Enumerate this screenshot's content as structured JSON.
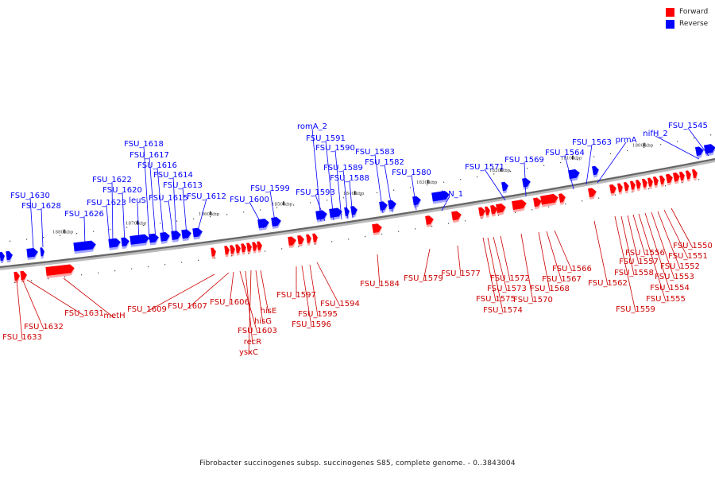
{
  "legend": {
    "forward": {
      "label": "Forward",
      "color": "#ff0000"
    },
    "reverse": {
      "label": "Reverse",
      "color": "#0000ff"
    }
  },
  "caption": "Fibrobacter succinogenes subsp. succinogenes S85, complete genome. - 0..3843004",
  "ticks": [
    "1880 kbp",
    "1870 kbp",
    "1860 kbp",
    "1850 kbp",
    "1840 kbp",
    "1830 kbp",
    "1820 kbp",
    "1810 kbp",
    "1800 kbp"
  ],
  "reverse_labels": [
    "FSU_1630",
    "FSU_1628",
    "FSU_1626",
    "FSU_1623",
    "FSU_1622",
    "FSU_1620",
    "leuS",
    "FSU_1618",
    "FSU_1617",
    "FSU_1616",
    "FSU_1615",
    "FSU_1614",
    "FSU_1613",
    "FSU_1612",
    "FSU_1600",
    "FSU_1599",
    "romA_2",
    "FSU_1593",
    "FSU_1591",
    "FSU_1590",
    "FSU_1589",
    "FSU_1588",
    "FSU_1583",
    "FSU_1582",
    "FSU_1580",
    "glnN_1",
    "FSU_1571",
    "FSU_1569",
    "FSU_1564",
    "FSU_1563",
    "prmA",
    "nifH_2",
    "FSU_1545"
  ],
  "forward_labels": [
    "FSU_1633",
    "FSU_1632",
    "FSU_1631",
    "metH",
    "FSU_1609",
    "FSU_1607",
    "FSU_1606",
    "FSU_1603",
    "recR",
    "ysxC",
    "hisG",
    "hisE",
    "FSU_1597",
    "FSU_1596",
    "FSU_1595",
    "FSU_1594",
    "FSU_1584",
    "FSU_1579",
    "FSU_1577",
    "FSU_1575",
    "FSU_1574",
    "FSU_1573",
    "FSU_1572",
    "FSU_1570",
    "FSU_1568",
    "FSU_1567",
    "FSU_1566",
    "FSU_1562",
    "FSU_1559",
    "FSU_1558",
    "FSU_1557",
    "FSU_1556",
    "FSU_1555",
    "FSU_1554",
    "FSU_1553",
    "FSU_1552",
    "FSU_1551",
    "FSU_1550"
  ]
}
